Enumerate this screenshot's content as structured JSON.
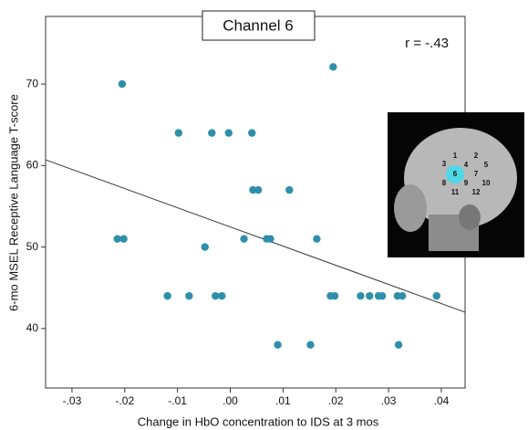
{
  "chart_data": {
    "type": "scatter",
    "title": "Channel 6",
    "annotation": "r = -.43",
    "xlabel": "Change in HbO concentration to IDS at 3 mos",
    "ylabel": "6-mo MSEL Receptive Language T-score",
    "x": [
      -0.0205,
      0.0195,
      -0.0098,
      -0.0035,
      -0.0003,
      0.0041,
      0.0043,
      0.0053,
      0.0112,
      -0.0214,
      -0.0202,
      0.0026,
      0.0069,
      0.0076,
      0.0164,
      -0.0048,
      -0.0119,
      -0.0078,
      -0.0028,
      -0.0016,
      0.019,
      0.0198,
      0.0247,
      0.0264,
      0.0281,
      0.0288,
      0.0317,
      0.0326,
      0.0391,
      0.009,
      0.0152,
      0.0319
    ],
    "values": [
      70,
      72.1,
      64,
      64,
      64,
      64,
      57,
      57,
      57,
      51,
      51,
      51,
      51,
      51,
      51,
      50,
      44,
      44,
      44,
      44,
      44,
      44,
      44,
      44,
      44,
      44,
      44,
      44,
      44,
      38,
      38,
      38
    ],
    "color": "#2f8fab",
    "fit_line": {
      "x": [
        -0.035,
        0.0445
      ],
      "y": [
        60.7,
        42.0
      ]
    },
    "xlim": [
      -0.035,
      0.0445
    ],
    "ylim": [
      32.7,
      78.3
    ],
    "xticks": [
      {
        "value": -0.03,
        "label": "-.03"
      },
      {
        "value": -0.02,
        "label": "-.02"
      },
      {
        "value": -0.01,
        "label": "-.01"
      },
      {
        "value": 0,
        "label": ".00"
      },
      {
        "value": 0.01,
        "label": ".01"
      },
      {
        "value": 0.02,
        "label": ".02"
      },
      {
        "value": 0.03,
        "label": ".03"
      },
      {
        "value": 0.04,
        "label": ".04"
      }
    ],
    "yticks": [
      40,
      50,
      60,
      70
    ],
    "inset_channels": [
      "1",
      "2",
      "3",
      "4",
      "5",
      "6",
      "7",
      "8",
      "9",
      "10",
      "11",
      "12"
    ]
  }
}
